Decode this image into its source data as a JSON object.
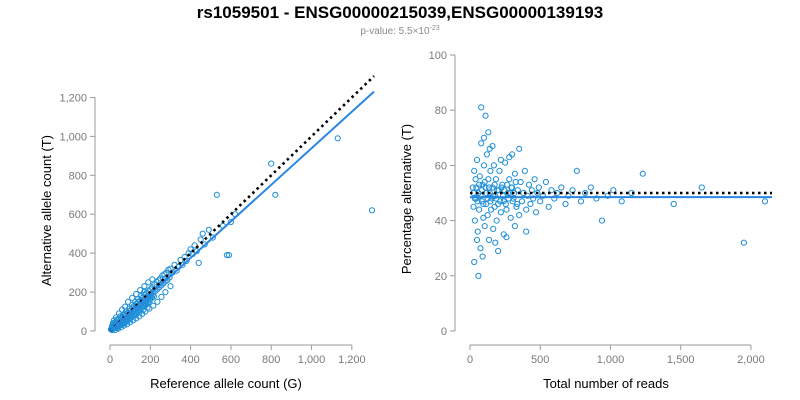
{
  "title": "rs1059501 - ENSG00000215039,ENSG00000139193",
  "subtitle": {
    "prefix": "p-value: 5.5×10",
    "exponent": "-23"
  },
  "colors": {
    "point": "#1f8fd6",
    "fit_line": "#2a86e0",
    "reference_line": "#000000",
    "axis": "#9a9a9a",
    "tick_text": "#7a7a7a"
  },
  "chart_data": [
    {
      "type": "scatter",
      "xlabel": "Reference allele count (G)",
      "ylabel": "Alternative allele count (T)",
      "xlim": [
        0,
        1300
      ],
      "ylim": [
        0,
        1300
      ],
      "xticks": [
        0,
        200,
        400,
        600,
        800,
        1000,
        1200
      ],
      "xtick_labels": [
        "0",
        "200",
        "400",
        "600",
        "800",
        "1,000",
        "1,200"
      ],
      "yticks": [
        0,
        200,
        400,
        600,
        800,
        1000,
        1200
      ],
      "ytick_labels": [
        "0",
        "200",
        "400",
        "600",
        "800",
        "1,000",
        "1,200"
      ],
      "grid": false,
      "reference_line": {
        "style": "dotted",
        "x": [
          0,
          1310
        ],
        "y": [
          0,
          1310
        ]
      },
      "fit_line": {
        "style": "solid",
        "x": [
          0,
          1310
        ],
        "y": [
          0,
          1230
        ]
      },
      "points": [
        [
          5,
          8
        ],
        [
          8,
          12
        ],
        [
          10,
          5
        ],
        [
          12,
          18
        ],
        [
          15,
          10
        ],
        [
          18,
          22
        ],
        [
          20,
          14
        ],
        [
          22,
          30
        ],
        [
          25,
          16
        ],
        [
          28,
          24
        ],
        [
          30,
          35
        ],
        [
          32,
          20
        ],
        [
          35,
          28
        ],
        [
          38,
          40
        ],
        [
          40,
          22
        ],
        [
          42,
          33
        ],
        [
          45,
          48
        ],
        [
          48,
          30
        ],
        [
          50,
          38
        ],
        [
          52,
          55
        ],
        [
          55,
          42
        ],
        [
          58,
          32
        ],
        [
          60,
          50
        ],
        [
          62,
          65
        ],
        [
          65,
          45
        ],
        [
          68,
          58
        ],
        [
          70,
          38
        ],
        [
          72,
          75
        ],
        [
          75,
          55
        ],
        [
          78,
          62
        ],
        [
          80,
          48
        ],
        [
          82,
          85
        ],
        [
          85,
          70
        ],
        [
          88,
          55
        ],
        [
          90,
          95
        ],
        [
          92,
          66
        ],
        [
          95,
          78
        ],
        [
          98,
          60
        ],
        [
          100,
          105
        ],
        [
          102,
          82
        ],
        [
          105,
          70
        ],
        [
          108,
          92
        ],
        [
          110,
          120
        ],
        [
          112,
          78
        ],
        [
          115,
          100
        ],
        [
          118,
          88
        ],
        [
          120,
          130
        ],
        [
          122,
          95
        ],
        [
          125,
          110
        ],
        [
          128,
          82
        ],
        [
          130,
          140
        ],
        [
          132,
          105
        ],
        [
          135,
          122
        ],
        [
          138,
          98
        ],
        [
          140,
          150
        ],
        [
          142,
          115
        ],
        [
          145,
          130
        ],
        [
          148,
          108
        ],
        [
          150,
          160
        ],
        [
          152,
          125
        ],
        [
          155,
          142
        ],
        [
          158,
          118
        ],
        [
          160,
          170
        ],
        [
          162,
          135
        ],
        [
          165,
          150
        ],
        [
          168,
          128
        ],
        [
          170,
          185
        ],
        [
          172,
          145
        ],
        [
          175,
          160
        ],
        [
          178,
          138
        ],
        [
          180,
          195
        ],
        [
          182,
          155
        ],
        [
          185,
          172
        ],
        [
          188,
          148
        ],
        [
          190,
          205
        ],
        [
          192,
          168
        ],
        [
          195,
          182
        ],
        [
          198,
          160
        ],
        [
          200,
          215
        ],
        [
          202,
          178
        ],
        [
          205,
          190
        ],
        [
          208,
          170
        ],
        [
          210,
          225
        ],
        [
          212,
          185
        ],
        [
          215,
          200
        ],
        [
          218,
          178
        ],
        [
          220,
          240
        ],
        [
          225,
          205
        ],
        [
          230,
          252
        ],
        [
          235,
          215
        ],
        [
          240,
          260
        ],
        [
          245,
          225
        ],
        [
          250,
          270
        ],
        [
          255,
          235
        ],
        [
          260,
          285
        ],
        [
          265,
          245
        ],
        [
          270,
          292
        ],
        [
          275,
          255
        ],
        [
          280,
          300
        ],
        [
          285,
          262
        ],
        [
          290,
          315
        ],
        [
          295,
          275
        ],
        [
          300,
          320
        ],
        [
          310,
          300
        ],
        [
          320,
          340
        ],
        [
          330,
          310
        ],
        [
          340,
          330
        ],
        [
          350,
          365
        ],
        [
          360,
          340
        ],
        [
          370,
          380
        ],
        [
          380,
          360
        ],
        [
          390,
          400
        ],
        [
          400,
          420
        ],
        [
          410,
          395
        ],
        [
          420,
          440
        ],
        [
          430,
          410
        ],
        [
          440,
          350
        ],
        [
          450,
          470
        ],
        [
          460,
          500
        ],
        [
          470,
          445
        ],
        [
          490,
          520
        ],
        [
          510,
          480
        ],
        [
          530,
          700
        ],
        [
          560,
          540
        ],
        [
          580,
          390
        ],
        [
          590,
          390
        ],
        [
          600,
          560
        ],
        [
          620,
          600
        ],
        [
          800,
          860
        ],
        [
          820,
          700
        ],
        [
          1130,
          990
        ],
        [
          1300,
          620
        ],
        [
          15,
          40
        ],
        [
          20,
          55
        ],
        [
          30,
          70
        ],
        [
          45,
          90
        ],
        [
          60,
          110
        ],
        [
          75,
          125
        ],
        [
          90,
          150
        ],
        [
          110,
          170
        ],
        [
          130,
          190
        ],
        [
          150,
          210
        ],
        [
          170,
          230
        ],
        [
          190,
          250
        ],
        [
          210,
          265
        ],
        [
          25,
          5
        ],
        [
          40,
          12
        ],
        [
          55,
          20
        ],
        [
          70,
          28
        ],
        [
          85,
          35
        ],
        [
          100,
          45
        ],
        [
          115,
          55
        ],
        [
          130,
          65
        ],
        [
          145,
          75
        ],
        [
          160,
          88
        ],
        [
          175,
          100
        ],
        [
          195,
          115
        ],
        [
          215,
          130
        ],
        [
          235,
          150
        ],
        [
          255,
          175
        ],
        [
          275,
          200
        ],
        [
          300,
          230
        ],
        [
          35,
          60
        ],
        [
          50,
          75
        ],
        [
          65,
          85
        ],
        [
          80,
          100
        ],
        [
          95,
          115
        ],
        [
          110,
          135
        ],
        [
          125,
          150
        ],
        [
          140,
          165
        ],
        [
          155,
          180
        ],
        [
          170,
          200
        ],
        [
          10,
          25
        ],
        [
          18,
          35
        ],
        [
          26,
          45
        ],
        [
          34,
          15
        ],
        [
          42,
          58
        ],
        [
          58,
          72
        ],
        [
          66,
          40
        ],
        [
          74,
          88
        ],
        [
          86,
          52
        ],
        [
          94,
          66
        ],
        [
          106,
          90
        ],
        [
          118,
          112
        ],
        [
          126,
          85
        ],
        [
          134,
          118
        ],
        [
          146,
          96
        ],
        [
          154,
          128
        ],
        [
          166,
          110
        ],
        [
          174,
          138
        ],
        [
          186,
          120
        ],
        [
          196,
          148
        ]
      ]
    },
    {
      "type": "scatter",
      "xlabel": "Total number of reads",
      "ylabel": "Percentage alternative (T)",
      "xlim": [
        0,
        2150
      ],
      "ylim": [
        0,
        100
      ],
      "xticks": [
        0,
        500,
        1000,
        1500,
        2000
      ],
      "xtick_labels": [
        "0",
        "500",
        "1,000",
        "1,500",
        "2,000"
      ],
      "yticks": [
        0,
        20,
        40,
        60,
        80,
        100
      ],
      "ytick_labels": [
        "0",
        "20",
        "40",
        "60",
        "80",
        "100"
      ],
      "grid": false,
      "reference_line": {
        "style": "dotted",
        "x": [
          0,
          2150
        ],
        "y": [
          50,
          50
        ]
      },
      "fit_line": {
        "style": "solid",
        "x": [
          0,
          2150
        ],
        "y": [
          48.5,
          48.5
        ]
      },
      "points": [
        [
          20,
          52
        ],
        [
          25,
          45
        ],
        [
          30,
          58
        ],
        [
          35,
          40
        ],
        [
          40,
          55
        ],
        [
          45,
          48
        ],
        [
          50,
          62
        ],
        [
          55,
          36
        ],
        [
          60,
          50
        ],
        [
          65,
          44
        ],
        [
          70,
          56
        ],
        [
          75,
          30
        ],
        [
          80,
          68
        ],
        [
          85,
          47
        ],
        [
          90,
          53
        ],
        [
          95,
          41
        ],
        [
          100,
          60
        ],
        [
          105,
          38
        ],
        [
          110,
          52
        ],
        [
          115,
          46
        ],
        [
          120,
          64
        ],
        [
          125,
          42
        ],
        [
          130,
          55
        ],
        [
          135,
          33
        ],
        [
          140,
          50
        ],
        [
          145,
          58
        ],
        [
          150,
          44
        ],
        [
          155,
          48
        ],
        [
          160,
          52
        ],
        [
          165,
          37
        ],
        [
          170,
          60
        ],
        [
          175,
          45
        ],
        [
          180,
          49
        ],
        [
          185,
          55
        ],
        [
          190,
          40
        ],
        [
          195,
          51
        ],
        [
          200,
          46
        ],
        [
          210,
          58
        ],
        [
          220,
          43
        ],
        [
          230,
          53
        ],
        [
          240,
          47
        ],
        [
          250,
          61
        ],
        [
          260,
          44
        ],
        [
          270,
          50
        ],
        [
          280,
          55
        ],
        [
          290,
          41
        ],
        [
          300,
          52
        ],
        [
          310,
          48
        ],
        [
          320,
          57
        ],
        [
          330,
          45
        ],
        [
          340,
          51
        ],
        [
          350,
          42
        ],
        [
          360,
          54
        ],
        [
          370,
          47
        ],
        [
          380,
          50
        ],
        [
          390,
          58
        ],
        [
          400,
          44
        ],
        [
          410,
          49
        ],
        [
          420,
          53
        ],
        [
          430,
          46
        ],
        [
          440,
          51
        ],
        [
          450,
          48
        ],
        [
          460,
          55
        ],
        [
          470,
          43
        ],
        [
          480,
          50
        ],
        [
          490,
          52
        ],
        [
          500,
          47
        ],
        [
          520,
          49
        ],
        [
          540,
          54
        ],
        [
          560,
          45
        ],
        [
          580,
          51
        ],
        [
          600,
          48
        ],
        [
          620,
          50
        ],
        [
          650,
          52
        ],
        [
          680,
          46
        ],
        [
          700,
          49
        ],
        [
          730,
          51
        ],
        [
          760,
          58
        ],
        [
          790,
          47
        ],
        [
          820,
          50
        ],
        [
          860,
          52
        ],
        [
          900,
          48
        ],
        [
          940,
          40
        ],
        [
          980,
          49
        ],
        [
          1020,
          51
        ],
        [
          1080,
          47
        ],
        [
          1150,
          50
        ],
        [
          1230,
          57
        ],
        [
          1450,
          46
        ],
        [
          1650,
          52
        ],
        [
          1950,
          32
        ],
        [
          2100,
          47
        ],
        [
          30,
          25
        ],
        [
          60,
          20
        ],
        [
          80,
          81
        ],
        [
          110,
          78
        ],
        [
          130,
          72
        ],
        [
          160,
          67
        ],
        [
          200,
          29
        ],
        [
          240,
          35
        ],
        [
          280,
          63
        ],
        [
          320,
          38
        ],
        [
          90,
          27
        ],
        [
          50,
          33
        ],
        [
          100,
          70
        ],
        [
          140,
          66
        ],
        [
          180,
          32
        ],
        [
          220,
          62
        ],
        [
          260,
          34
        ],
        [
          300,
          64
        ],
        [
          350,
          66
        ],
        [
          400,
          36
        ],
        [
          25,
          50
        ],
        [
          35,
          48
        ],
        [
          45,
          52
        ],
        [
          55,
          47
        ],
        [
          65,
          53
        ],
        [
          75,
          49
        ],
        [
          85,
          51
        ],
        [
          95,
          46
        ],
        [
          105,
          54
        ],
        [
          115,
          50
        ],
        [
          125,
          48
        ],
        [
          135,
          52
        ],
        [
          145,
          47
        ],
        [
          165,
          49
        ],
        [
          175,
          53
        ],
        [
          185,
          48
        ],
        [
          205,
          51
        ],
        [
          215,
          47
        ],
        [
          225,
          52
        ],
        [
          235,
          49
        ],
        [
          245,
          51
        ],
        [
          255,
          46
        ],
        [
          265,
          53
        ],
        [
          275,
          48
        ],
        [
          285,
          50
        ],
        [
          295,
          52
        ],
        [
          305,
          47
        ],
        [
          315,
          50
        ],
        [
          325,
          54
        ],
        [
          335,
          46
        ]
      ]
    }
  ]
}
